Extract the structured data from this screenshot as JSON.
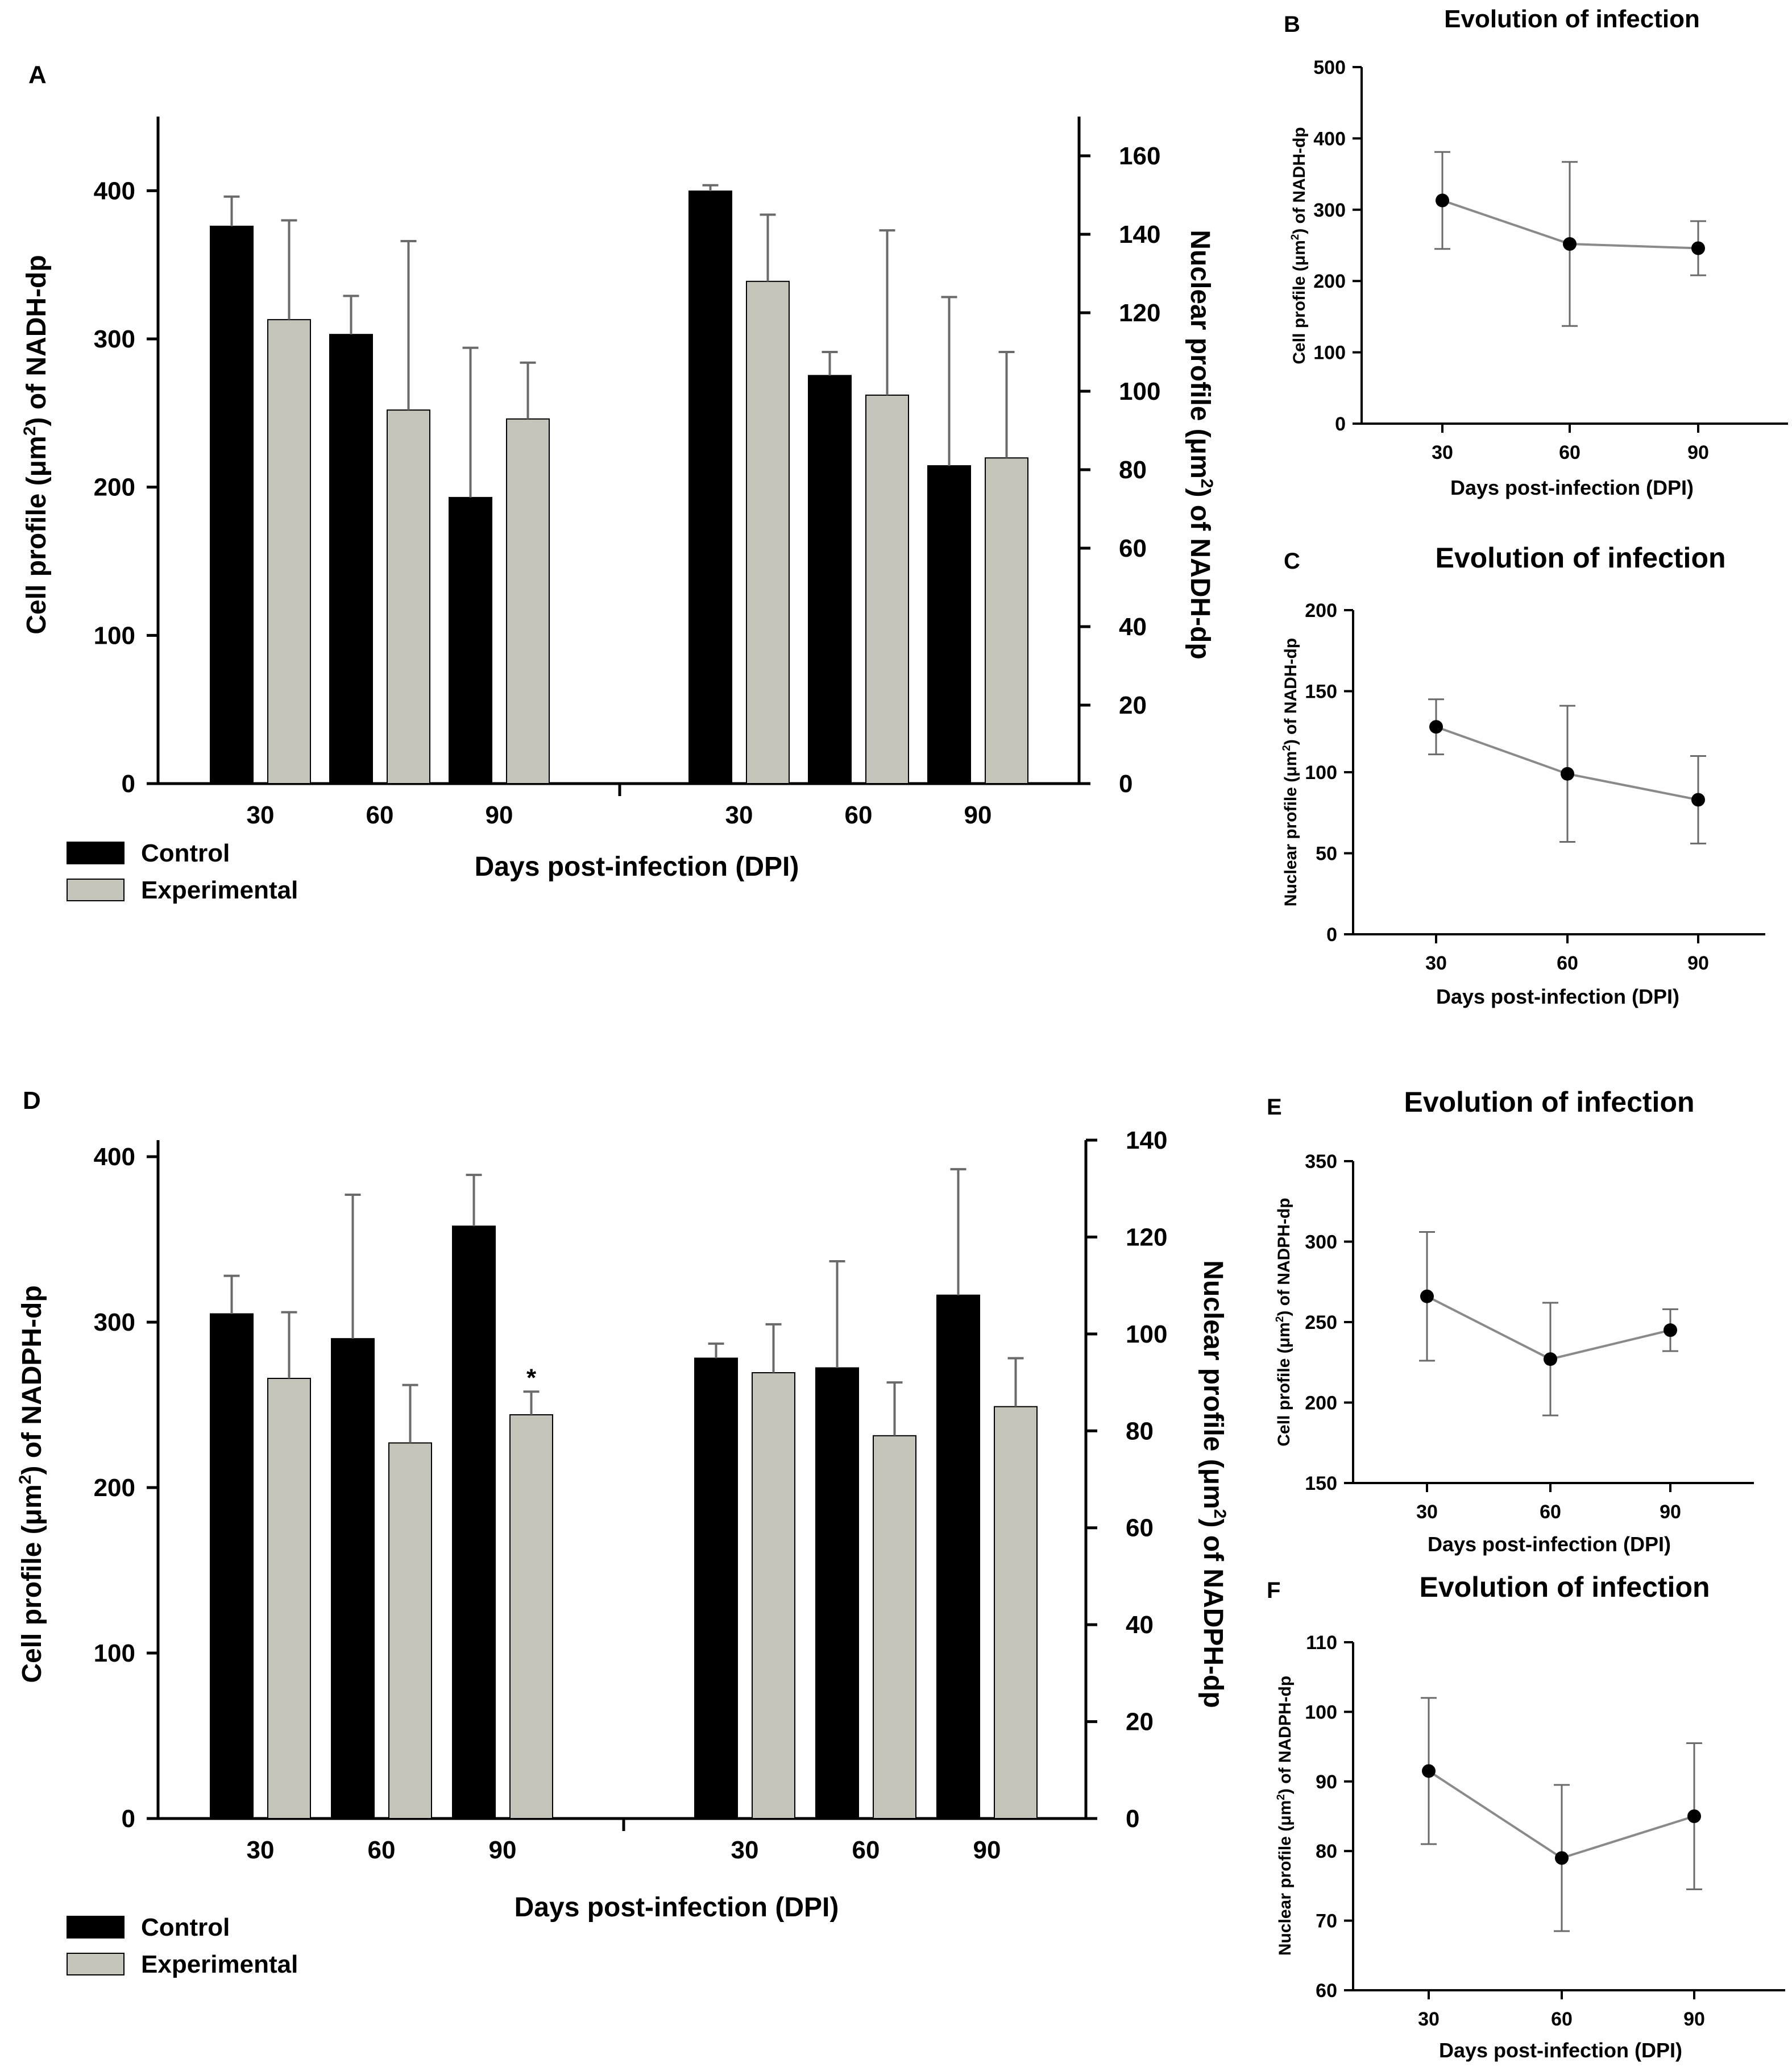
{
  "colors": {
    "control": "#000000",
    "experimental": "#c4c4bb",
    "axis": "#000000",
    "line": "#8a8a8a",
    "errorbar": "#6a6a6a",
    "background": "#ffffff"
  },
  "chart_data": [
    {
      "id": "A",
      "panel_label": "A",
      "type": "bar",
      "title": "",
      "xlabel": "Days post-infection (DPI)",
      "ylabel_left": "Cell profile (μm²) of NADH-dp",
      "ylabel_right": "Nuclear profile (μm²) of NADH-dp",
      "ylim_left": [
        0,
        450
      ],
      "ylim_right": [
        0,
        170
      ],
      "yticks_left": [
        0,
        100,
        200,
        300,
        400
      ],
      "yticks_right": [
        0,
        20,
        40,
        60,
        80,
        100,
        120,
        140,
        160
      ],
      "legend": [
        "Control",
        "Experimental"
      ],
      "legend_position": "bottom-left",
      "groups": [
        {
          "name": "Cell profile",
          "axis": "left",
          "categories": [
            "30",
            "60",
            "90"
          ],
          "series": [
            {
              "name": "Control",
              "values": [
                376,
                303,
                193
              ],
              "errors": [
                20,
                26,
                101
              ]
            },
            {
              "name": "Experimental",
              "values": [
                313,
                252,
                246
              ],
              "errors": [
                67,
                114,
                38
              ]
            }
          ]
        },
        {
          "name": "Nuclear profile",
          "axis": "right",
          "categories": [
            "30",
            "60",
            "90"
          ],
          "series": [
            {
              "name": "Control",
              "values": [
                151,
                104,
                81
              ],
              "errors": [
                1.5,
                6,
                43
              ]
            },
            {
              "name": "Experimental",
              "values": [
                128,
                99,
                83
              ],
              "errors": [
                17,
                42,
                27
              ]
            }
          ]
        }
      ],
      "annotations": []
    },
    {
      "id": "B",
      "panel_label": "B",
      "type": "line",
      "title": "Evolution of infection",
      "xlabel": "Days post-infection (DPI)",
      "ylabel": "Cell profile (μm²) of NADH-dp",
      "categories": [
        "30",
        "60",
        "90"
      ],
      "values": [
        313,
        252,
        246
      ],
      "errors": [
        68,
        115,
        38
      ],
      "ylim": [
        0,
        500
      ],
      "yticks": [
        0,
        100,
        200,
        300,
        400,
        500
      ]
    },
    {
      "id": "C",
      "panel_label": "C",
      "type": "line",
      "title": "Evolution of infection",
      "xlabel": "Days post-infection (DPI)",
      "ylabel": "Nuclear profile (μm²) of NADH-dp",
      "categories": [
        "30",
        "60",
        "90"
      ],
      "values": [
        128,
        99,
        83
      ],
      "errors": [
        17,
        42,
        27
      ],
      "ylim": [
        0,
        200
      ],
      "yticks": [
        0,
        50,
        100,
        150,
        200
      ]
    },
    {
      "id": "D",
      "panel_label": "D",
      "type": "bar",
      "title": "",
      "xlabel": "Days post-infection (DPI)",
      "ylabel_left": "Cell profile (μm²) of NADPH-dp",
      "ylabel_right": "Nuclear profile (μm²) of NADPH-dp",
      "ylim_left": [
        0,
        410
      ],
      "ylim_right": [
        0,
        140
      ],
      "yticks_left": [
        0,
        100,
        200,
        300,
        400
      ],
      "yticks_right": [
        0,
        20,
        40,
        60,
        80,
        100,
        120,
        140
      ],
      "legend": [
        "Control",
        "Experimental"
      ],
      "legend_position": "bottom-left",
      "groups": [
        {
          "name": "Cell profile",
          "axis": "left",
          "categories": [
            "30",
            "60",
            "90"
          ],
          "series": [
            {
              "name": "Control",
              "values": [
                305,
                290,
                358
              ],
              "errors": [
                23,
                87,
                31
              ]
            },
            {
              "name": "Experimental",
              "values": [
                266,
                227,
                244
              ],
              "errors": [
                40,
                35,
                14
              ]
            }
          ]
        },
        {
          "name": "Nuclear profile",
          "axis": "right",
          "categories": [
            "30",
            "60",
            "90"
          ],
          "series": [
            {
              "name": "Control",
              "values": [
                95,
                93,
                108
              ],
              "errors": [
                3,
                22,
                26
              ]
            },
            {
              "name": "Experimental",
              "values": [
                92,
                79,
                85
              ],
              "errors": [
                10,
                11,
                10
              ]
            }
          ]
        }
      ],
      "annotations": [
        {
          "text": "*",
          "group": 0,
          "series": "Experimental",
          "category": "90"
        }
      ]
    },
    {
      "id": "E",
      "panel_label": "E",
      "type": "line",
      "title": "Evolution of infection",
      "xlabel": "Days post-infection (DPI)",
      "ylabel": "Cell profile (μm²) of NADPH-dp",
      "categories": [
        "30",
        "60",
        "90"
      ],
      "values": [
        266,
        227,
        245
      ],
      "errors": [
        40,
        35,
        13
      ],
      "ylim": [
        150,
        350
      ],
      "yticks": [
        150,
        200,
        250,
        300,
        350
      ]
    },
    {
      "id": "F",
      "panel_label": "F",
      "type": "line",
      "title": "Evolution of infection",
      "xlabel": "Days post-infection (DPI)",
      "ylabel": "Nuclear profile (μm²) of  NADPH-dp",
      "categories": [
        "30",
        "60",
        "90"
      ],
      "values": [
        91.5,
        79,
        85
      ],
      "errors": [
        10.5,
        10.5,
        10.5
      ],
      "ylim": [
        60,
        110
      ],
      "yticks": [
        60,
        70,
        80,
        90,
        100,
        110
      ]
    }
  ]
}
